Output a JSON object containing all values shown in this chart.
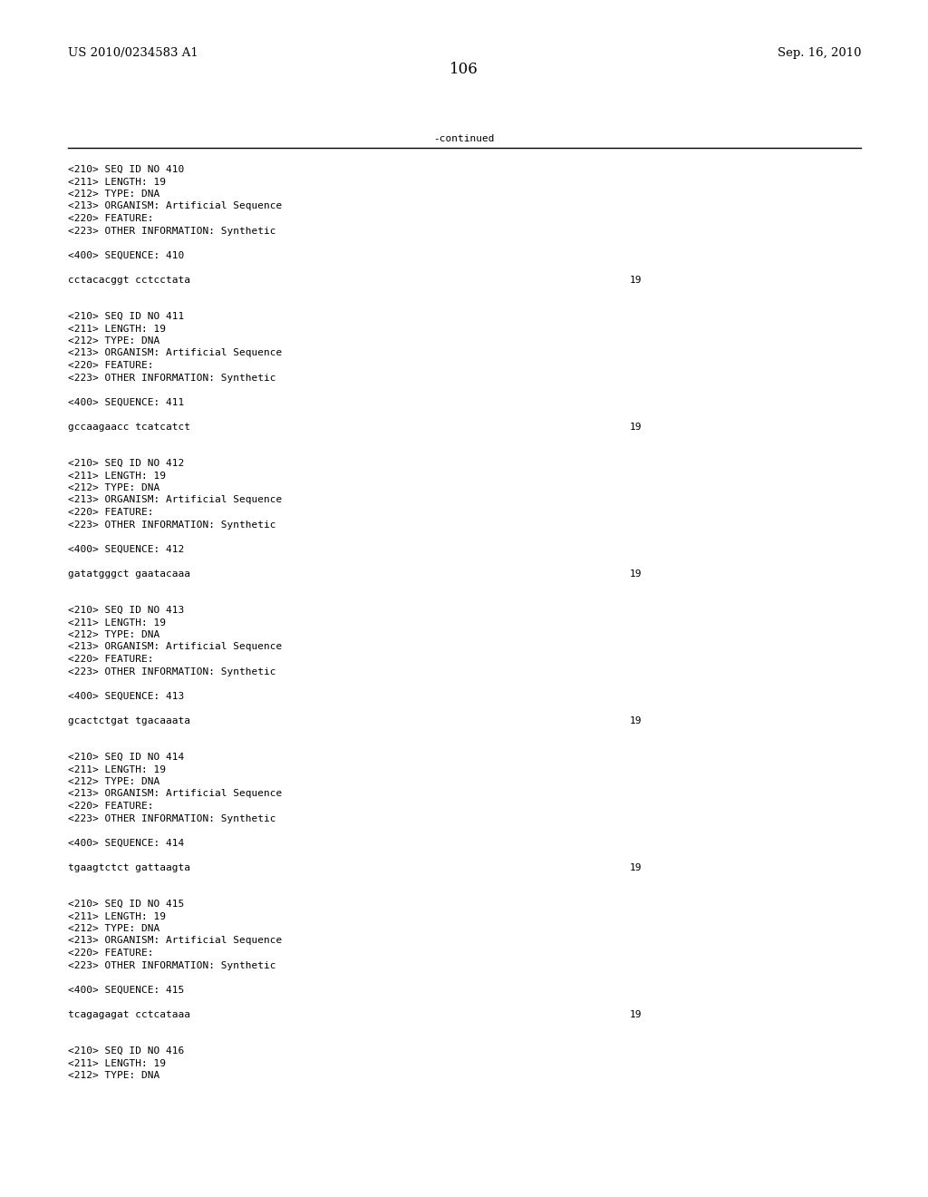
{
  "background_color": "#ffffff",
  "header_left": "US 2010/0234583 A1",
  "header_right": "Sep. 16, 2010",
  "page_number": "106",
  "continued_text": "-continued",
  "entries": [
    {
      "seq_id": "410",
      "length": "19",
      "type": "DNA",
      "organism": "Artificial Sequence",
      "other_info": "Synthetic",
      "sequence": "cctacacggt cctcctata",
      "seq_length_num": "19"
    },
    {
      "seq_id": "411",
      "length": "19",
      "type": "DNA",
      "organism": "Artificial Sequence",
      "other_info": "Synthetic",
      "sequence": "gccaagaacc tcatcatct",
      "seq_length_num": "19"
    },
    {
      "seq_id": "412",
      "length": "19",
      "type": "DNA",
      "organism": "Artificial Sequence",
      "other_info": "Synthetic",
      "sequence": "gatatgggct gaatacaaa",
      "seq_length_num": "19"
    },
    {
      "seq_id": "413",
      "length": "19",
      "type": "DNA",
      "organism": "Artificial Sequence",
      "other_info": "Synthetic",
      "sequence": "gcactctgat tgacaaata",
      "seq_length_num": "19"
    },
    {
      "seq_id": "414",
      "length": "19",
      "type": "DNA",
      "organism": "Artificial Sequence",
      "other_info": "Synthetic",
      "sequence": "tgaagtctct gattaagta",
      "seq_length_num": "19"
    },
    {
      "seq_id": "415",
      "length": "19",
      "type": "DNA",
      "organism": "Artificial Sequence",
      "other_info": "Synthetic",
      "sequence": "tcagagagat cctcataaa",
      "seq_length_num": "19"
    },
    {
      "seq_id": "416",
      "length": "19",
      "type": "DNA",
      "organism": "",
      "other_info": "",
      "sequence": "",
      "seq_length_num": ""
    }
  ],
  "mono_fontsize": 8.0,
  "header_fontsize": 9.5,
  "page_num_fontsize": 12
}
